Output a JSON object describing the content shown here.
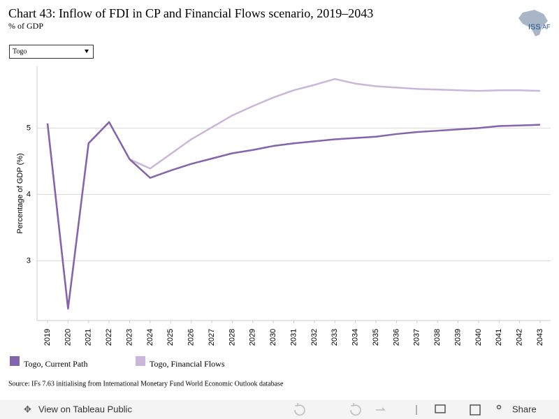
{
  "chart_data": {
    "type": "line",
    "title": "Chart 43: Inflow of FDI in CP and Financial Flows scenario, 2019–2043",
    "subtitle": "% of GDP",
    "filter_value": "Togo",
    "y_label": "Percentage of GDP (%)",
    "categories": [
      "2019",
      "2020",
      "2021",
      "2022",
      "2023",
      "2024",
      "2025",
      "2026",
      "2027",
      "2028",
      "2029",
      "2030",
      "2031",
      "2032",
      "2033",
      "2034",
      "2035",
      "2036",
      "2037",
      "2038",
      "2039",
      "2040",
      "2041",
      "2042",
      "2043"
    ],
    "series": [
      {
        "name": "Togo, Current Path",
        "color": "#8464ac",
        "values": [
          5.07,
          2.28,
          4.77,
          5.09,
          4.53,
          4.25,
          4.36,
          4.46,
          4.54,
          4.62,
          4.67,
          4.73,
          4.77,
          4.8,
          4.83,
          4.85,
          4.87,
          4.91,
          4.94,
          4.96,
          4.98,
          5.0,
          5.03,
          5.04,
          5.05
        ]
      },
      {
        "name": "Togo, Financial Flows",
        "color": "#c9b7da",
        "values": [
          5.07,
          2.28,
          4.77,
          5.09,
          4.53,
          4.39,
          4.61,
          4.83,
          5.01,
          5.19,
          5.33,
          5.46,
          5.57,
          5.65,
          5.74,
          5.67,
          5.63,
          5.61,
          5.59,
          5.58,
          5.57,
          5.56,
          5.57,
          5.57,
          5.56
        ]
      }
    ],
    "ylim": [
      2.1,
      5.93
    ],
    "yticks": [
      3,
      4,
      5
    ],
    "grid": true,
    "source": "Source: IFs 7.63 initialising from International Monetary Fund World Economic Outlook database"
  },
  "logo": {
    "text": "ISS",
    "suffix": "AF"
  },
  "toolbar": {
    "view": "View on Tableau Public",
    "share": "Share"
  }
}
